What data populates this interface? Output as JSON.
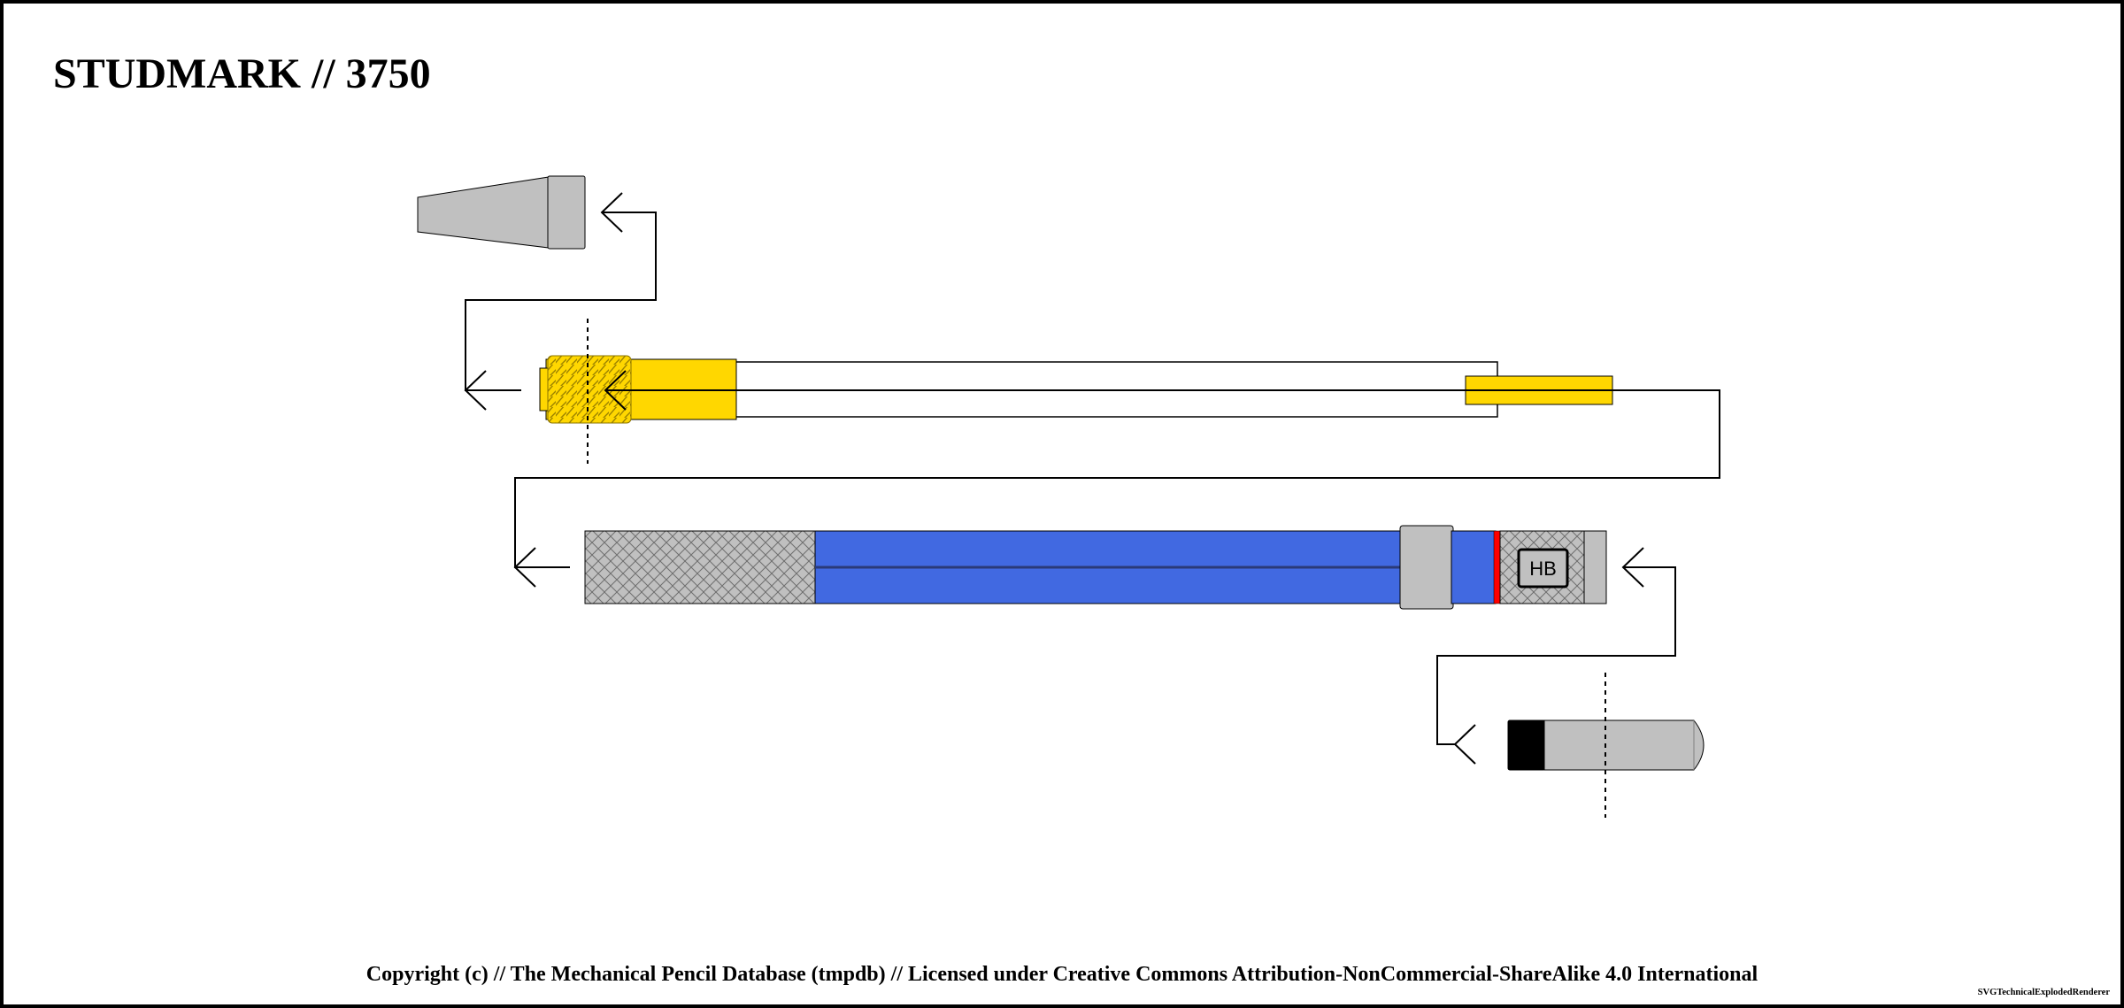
{
  "title": "STUDMARK // 3750",
  "footer": {
    "copyright": "Copyright (c) // The Mechanical Pencil Database (tmpdb) // Licensed under Creative Commons Attribution-NonCommercial-ShareAlike 4.0 International",
    "renderer": "SVGTechnicalExplodedRenderer"
  },
  "grade_indicator": "HB",
  "colors": {
    "metal_gray": "#c0c0c0",
    "brass_yellow": "#ffd700",
    "body_blue": "#4169e1",
    "accent_red": "#ff0000",
    "cap_black": "#000000",
    "line": "#000000"
  },
  "parts": [
    {
      "name": "tip-cone",
      "color": "metal_gray"
    },
    {
      "name": "threaded-front-section",
      "color": "brass_yellow"
    },
    {
      "name": "lead-sleeve",
      "color": "brass_yellow"
    },
    {
      "name": "barrel-body",
      "color": "body_blue"
    },
    {
      "name": "eraser-cap",
      "color": "metal_gray"
    }
  ]
}
